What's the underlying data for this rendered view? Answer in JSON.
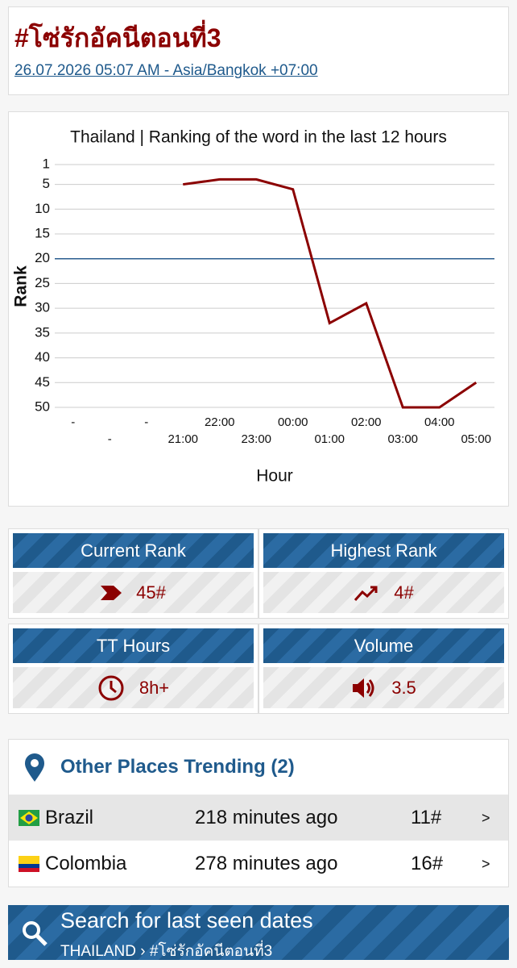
{
  "header": {
    "title": "#โซ่รักอัคนีตอนที่3",
    "date_link": "26.07.2026 05:07 AM - Asia/Bangkok +07:00"
  },
  "chart_data": {
    "type": "line",
    "title": "Thailand | Ranking of the word in the last 12 hours",
    "x_label": "Hour",
    "y_label": "Rank",
    "categories": [
      "-",
      "-",
      "-",
      "21:00",
      "22:00",
      "23:00",
      "00:00",
      "01:00",
      "02:00",
      "03:00",
      "04:00",
      "05:00"
    ],
    "values": [
      null,
      null,
      null,
      5,
      4,
      4,
      6,
      33,
      29,
      50,
      50,
      45
    ],
    "color": "#8b0000",
    "ylim": [
      1,
      50
    ],
    "yticks": [
      1,
      5,
      10,
      15,
      20,
      25,
      30,
      35,
      40,
      45,
      50
    ],
    "y_inverted": true,
    "grid": true,
    "reference_line": {
      "value": 20,
      "color": "#2a5d8f"
    }
  },
  "stats": [
    {
      "label": "Current Rank",
      "value": "45#"
    },
    {
      "label": "Highest Rank",
      "value": "4#"
    },
    {
      "label": "TT Hours",
      "value": "8h+"
    },
    {
      "label": "Volume",
      "value": "3.5"
    }
  ],
  "other_places": {
    "heading": "Other Places Trending (2)",
    "rows": [
      {
        "country": "Brazil",
        "time": "218 minutes ago",
        "rank": "11#",
        "arrow": ">"
      },
      {
        "country": "Colombia",
        "time": "278 minutes ago",
        "rank": "16#",
        "arrow": ">"
      }
    ]
  },
  "search": {
    "title": "Search for last seen dates",
    "breadcrumb": "THAILAND › #โซ่รักอัคนีตอนที่3"
  }
}
